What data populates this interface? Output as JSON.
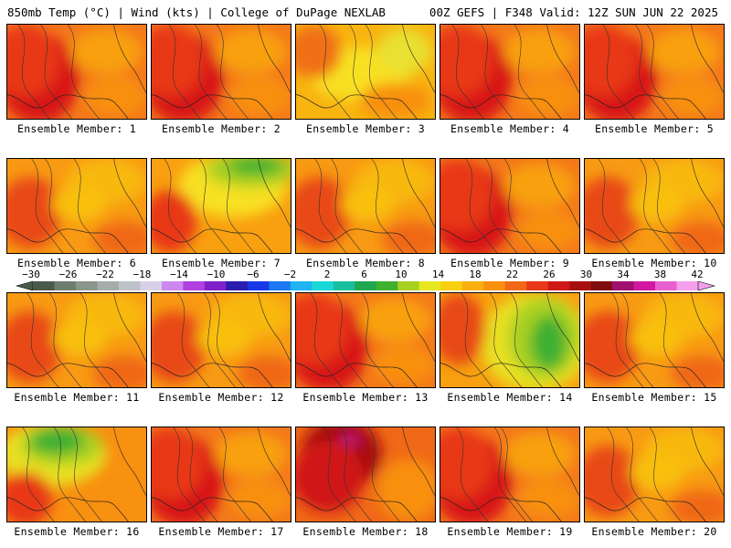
{
  "header": {
    "left": "850mb Temp (°C) | Wind (kts) | College of DuPage NEXLAB",
    "right": "00Z GEFS | F348 Valid: 12Z SUN JUN 22 2025"
  },
  "colorbar": {
    "ticks": [
      "−30",
      "−26",
      "−22",
      "−18",
      "−14",
      "−10",
      "−6",
      "−2",
      "2",
      "6",
      "10",
      "14",
      "18",
      "22",
      "26",
      "30",
      "34",
      "38",
      "42"
    ],
    "colors": [
      "#4a5a4a",
      "#6e7e6e",
      "#8a968a",
      "#a4acac",
      "#bcc2c8",
      "#d8d0e8",
      "#cc88ee",
      "#b040e0",
      "#8020c8",
      "#2c1cb0",
      "#1838e8",
      "#1c78f0",
      "#20b4f0",
      "#18d8d8",
      "#18c0a0",
      "#20a850",
      "#40b030",
      "#a8d020",
      "#e8e820",
      "#f8d010",
      "#f8b010",
      "#f89010",
      "#f06818",
      "#e83818",
      "#d01818",
      "#a81010",
      "#800c10",
      "#a01070",
      "#d018a0",
      "#e860d0",
      "#f4a0ec"
    ]
  },
  "panels": [
    {
      "label": "Ensemble Member: 1",
      "theme": "hot"
    },
    {
      "label": "Ensemble Member: 2",
      "theme": "hot"
    },
    {
      "label": "Ensemble Member: 3",
      "theme": "mild"
    },
    {
      "label": "Ensemble Member: 4",
      "theme": "hot"
    },
    {
      "label": "Ensemble Member: 5",
      "theme": "hot"
    },
    {
      "label": "Ensemble Member: 6",
      "theme": "warm"
    },
    {
      "label": "Ensemble Member: 7",
      "theme": "cool-north"
    },
    {
      "label": "Ensemble Member: 8",
      "theme": "warm"
    },
    {
      "label": "Ensemble Member: 9",
      "theme": "hot"
    },
    {
      "label": "Ensemble Member: 10",
      "theme": "warm"
    },
    {
      "label": "Ensemble Member: 11",
      "theme": "warm"
    },
    {
      "label": "Ensemble Member: 12",
      "theme": "warm"
    },
    {
      "label": "Ensemble Member: 13",
      "theme": "hot"
    },
    {
      "label": "Ensemble Member: 14",
      "theme": "cool-east"
    },
    {
      "label": "Ensemble Member: 15",
      "theme": "warm"
    },
    {
      "label": "Ensemble Member: 16",
      "theme": "cool-nw"
    },
    {
      "label": "Ensemble Member: 17",
      "theme": "hot"
    },
    {
      "label": "Ensemble Member: 18",
      "theme": "hot-peak"
    },
    {
      "label": "Ensemble Member: 19",
      "theme": "hot"
    },
    {
      "label": "Ensemble Member: 20",
      "theme": "warm"
    }
  ]
}
